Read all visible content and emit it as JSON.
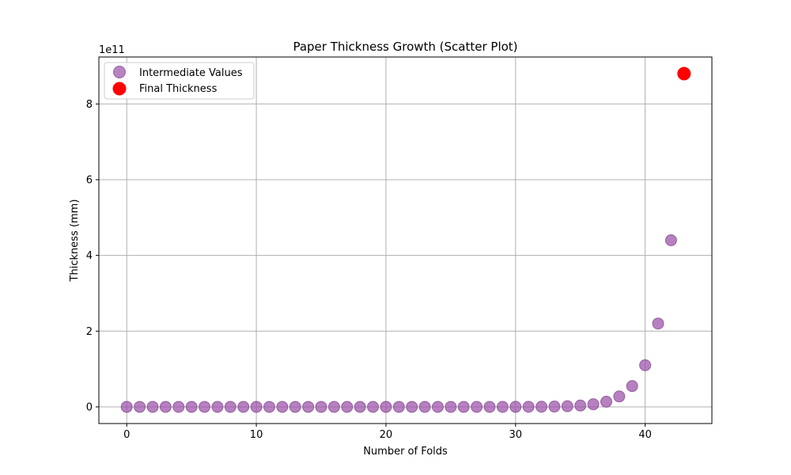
{
  "chart_data": {
    "type": "scatter",
    "title": "Paper Thickness Growth (Scatter Plot)",
    "xlabel": "Number of Folds",
    "ylabel": "Thickness (mm)",
    "y_offset_label": "1e11",
    "xlim": [
      -2.15,
      45.15
    ],
    "ylim": [
      -0.44,
      9.24
    ],
    "y_unit_scale": "1e11",
    "x_ticks": [
      0,
      10,
      20,
      30,
      40
    ],
    "y_ticks": [
      0,
      2,
      4,
      6,
      8
    ],
    "x_tick_labels": [
      "0",
      "10",
      "20",
      "30",
      "40"
    ],
    "y_tick_labels": [
      "0",
      "2",
      "4",
      "6",
      "8"
    ],
    "grid": true,
    "legend_position": "top-left",
    "series": [
      {
        "name": "Intermediate Values",
        "color": "#9b4fa8",
        "x": [
          0,
          1,
          2,
          3,
          4,
          5,
          6,
          7,
          8,
          9,
          10,
          11,
          12,
          13,
          14,
          15,
          16,
          17,
          18,
          19,
          20,
          21,
          22,
          23,
          24,
          25,
          26,
          27,
          28,
          29,
          30,
          31,
          32,
          33,
          34,
          35,
          36,
          37,
          38,
          39,
          40,
          41,
          42
        ],
        "y": [
          0,
          0,
          0,
          0,
          0,
          0,
          0,
          0,
          0,
          0,
          0,
          0,
          0,
          0,
          0,
          0,
          0,
          0,
          0,
          0,
          0,
          0,
          0,
          0,
          0,
          0,
          0,
          0,
          0,
          0,
          0.0011,
          0.0021,
          0.0043,
          0.0086,
          0.0172,
          0.0344,
          0.0687,
          0.137,
          0.275,
          0.55,
          1.1,
          2.2,
          4.4
        ]
      },
      {
        "name": "Final Thickness",
        "color": "#ff0000",
        "x": [
          43
        ],
        "y": [
          8.8
        ]
      }
    ]
  }
}
